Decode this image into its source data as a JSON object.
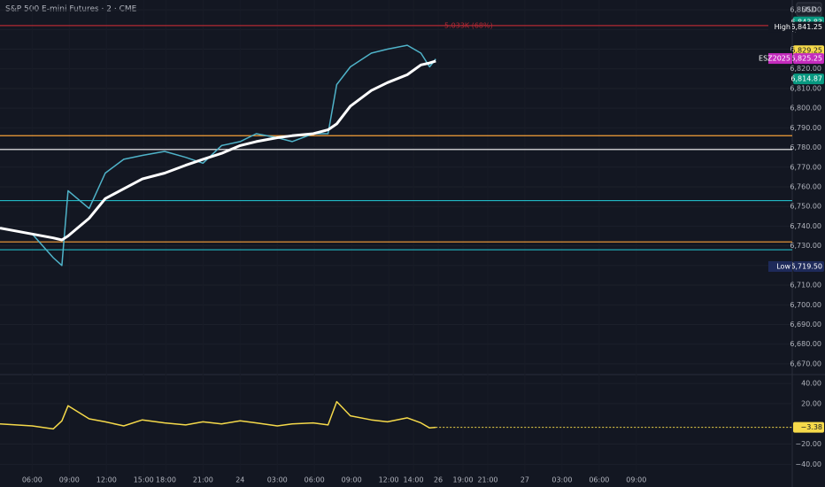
{
  "chart_data": [
    {
      "type": "line",
      "title": "S&P 500 E-mini Futures · 2 · CME",
      "currency": "USD",
      "x": [
        -2.6,
        0,
        1.7,
        2.4,
        2.9,
        4.6,
        5.9,
        7.4,
        8.9,
        10.7,
        12.4,
        13.8,
        15.3,
        16.8,
        18.1,
        19.8,
        21,
        22.7,
        23.9,
        24.6,
        25.7,
        27.4,
        28.7,
        30.3,
        31.4,
        32.1,
        32.6
      ],
      "series": [
        {
          "name": "Price",
          "color": "#4fb3c9",
          "values": [
            6739,
            6736,
            6724,
            6720,
            6758,
            6749,
            6767,
            6774,
            6776,
            6778,
            6775,
            6772,
            6781,
            6783,
            6787,
            6785,
            6783,
            6787,
            6787,
            6812,
            6821,
            6828,
            6830,
            6832,
            6828,
            6821,
            6825
          ]
        },
        {
          "name": "MA",
          "color": "#ffffff",
          "values": [
            6739,
            6736,
            6734,
            6733,
            6735,
            6744,
            6754,
            6759,
            6764,
            6767,
            6771,
            6774,
            6777,
            6781,
            6783,
            6785,
            6786,
            6787,
            6789,
            6792,
            6801,
            6809,
            6813,
            6817,
            6822,
            6823,
            6824
          ]
        }
      ],
      "xlim": [
        -2.6,
        61.4
      ],
      "xticks": [
        {
          "value": 0,
          "label": "06:00"
        },
        {
          "value": 3,
          "label": "09:00"
        },
        {
          "value": 6,
          "label": "12:00"
        },
        {
          "value": 9,
          "label": "15:00"
        },
        {
          "value": 10.8,
          "label": "18:00"
        },
        {
          "value": 13.8,
          "label": "21:00"
        },
        {
          "value": 16.8,
          "label": "24"
        },
        {
          "value": 19.8,
          "label": "03:00"
        },
        {
          "value": 22.8,
          "label": "06:00"
        },
        {
          "value": 25.8,
          "label": "09:00"
        },
        {
          "value": 28.8,
          "label": "12:00"
        },
        {
          "value": 30.8,
          "label": "14:00"
        },
        {
          "value": 32.8,
          "label": "26"
        },
        {
          "value": 34.8,
          "label": "19:00"
        },
        {
          "value": 36.8,
          "label": "21:00"
        },
        {
          "value": 39.8,
          "label": "27"
        },
        {
          "value": 42.8,
          "label": "03:00"
        },
        {
          "value": 45.8,
          "label": "06:00"
        },
        {
          "value": 48.8,
          "label": "09:00"
        }
      ],
      "ylim": [
        6665,
        6855
      ],
      "yticks": [
        {
          "value": 6670,
          "label": "6,670.00"
        },
        {
          "value": 6680,
          "label": "6,680.00"
        },
        {
          "value": 6690,
          "label": "6,690.00"
        },
        {
          "value": 6700,
          "label": "6,700.00"
        },
        {
          "value": 6710,
          "label": "6,710.00"
        },
        {
          "value": 6720,
          "label": "6,720.00"
        },
        {
          "value": 6730,
          "label": "6,730.00"
        },
        {
          "value": 6740,
          "label": "6,740.00"
        },
        {
          "value": 6750,
          "label": "6,750.00"
        },
        {
          "value": 6760,
          "label": "6,760.00"
        },
        {
          "value": 6770,
          "label": "6,770.00"
        },
        {
          "value": 6780,
          "label": "6,780.00"
        },
        {
          "value": 6790,
          "label": "6,790.00"
        },
        {
          "value": 6800,
          "label": "6,800.00"
        },
        {
          "value": 6810,
          "label": "6,810.00"
        },
        {
          "value": 6820,
          "label": "6,820.00"
        },
        {
          "value": 6830,
          "label": "6,830.00"
        },
        {
          "value": 6840,
          "label": "6,840.00"
        },
        {
          "value": 6850,
          "label": "6,850.00"
        }
      ],
      "levels": [
        {
          "value": 6842,
          "color": "#b22833",
          "label": "5.033K (68%)"
        },
        {
          "value": 6786,
          "color": "#f7a13a"
        },
        {
          "value": 6779,
          "color": "#ffffff"
        },
        {
          "value": 6753,
          "color": "#22b8c4"
        },
        {
          "value": 6732,
          "color": "#f7a13a"
        },
        {
          "value": 6728,
          "color": "#22b8c4"
        }
      ],
      "price_labels": [
        {
          "value": 6843.83,
          "label": "6,843.83",
          "color": "#089981"
        },
        {
          "value": 6841.25,
          "label": "6,841.25",
          "name": "High",
          "color": "#131722"
        },
        {
          "value": 6829.25,
          "label": "6,829.25",
          "color": "#f5d94a"
        },
        {
          "value": 6825.25,
          "label": "6,825.25",
          "name": "ESZ2025",
          "color": "#c42bbd"
        },
        {
          "value": 6814.87,
          "label": "6,814.87",
          "color": "#089981"
        },
        {
          "value": 6719.5,
          "label": "6,719.50",
          "name": "Low",
          "color": "#1e2a5a"
        }
      ]
    },
    {
      "type": "line",
      "series": [
        {
          "name": "Oscillator",
          "color": "#f5d94a",
          "values": [
            0,
            -2,
            -5,
            3,
            18,
            5,
            2,
            -2,
            4,
            1,
            -1,
            2,
            0,
            3,
            1,
            -2,
            0,
            1,
            -1,
            22,
            8,
            4,
            2,
            6,
            1,
            -4,
            -3.38
          ]
        }
      ],
      "ylim": [
        -52,
        48
      ],
      "yticks": [
        {
          "value": 40,
          "label": "40.00"
        },
        {
          "value": 20,
          "label": "20.00"
        },
        {
          "value": -20,
          "label": "−20.00"
        },
        {
          "value": -40,
          "label": "−40.00"
        }
      ],
      "last": {
        "value": -3.38,
        "label": "−3.38",
        "color": "#f5d94a"
      }
    }
  ]
}
